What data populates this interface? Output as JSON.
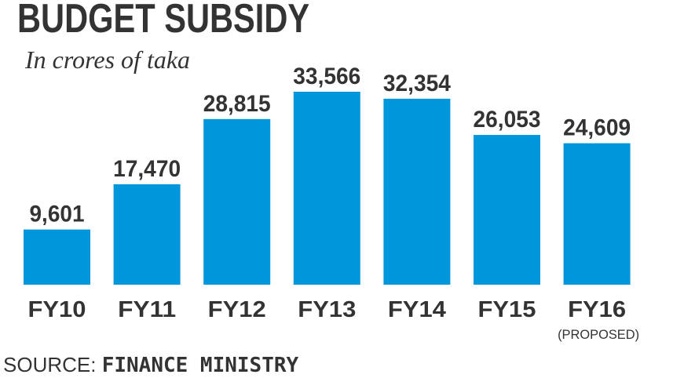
{
  "chart_data": {
    "type": "bar",
    "title": "BUDGET SUBSIDY",
    "subtitle": "In crores of taka",
    "categories": [
      "FY10",
      "FY11",
      "FY12",
      "FY13",
      "FY14",
      "FY15",
      "FY16"
    ],
    "category_notes": [
      "",
      "",
      "",
      "",
      "",
      "",
      "(PROPOSED)"
    ],
    "values": [
      9601,
      17470,
      28815,
      33566,
      32354,
      26053,
      24609
    ],
    "value_labels": [
      "9,601",
      "17,470",
      "28,815",
      "33,566",
      "32,354",
      "26,053",
      "24,609"
    ],
    "xlabel": "",
    "ylabel": "",
    "ylim": [
      0,
      33566
    ],
    "grid": false,
    "bar_color": "#0096db"
  },
  "source": {
    "prefix": "SOURCE:",
    "name": "FINANCE MINISTRY"
  }
}
